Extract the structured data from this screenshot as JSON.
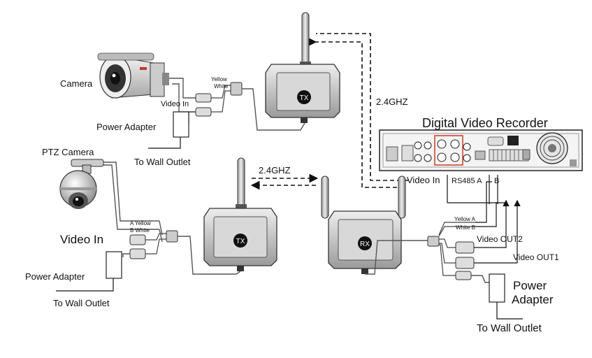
{
  "diagram": {
    "camera_label": "Camera",
    "ptz_camera_label": "PTZ Camera",
    "video_in_top": "Video In",
    "video_in_left": "Video In",
    "video_in_dvr": "Video In",
    "power_adapter_top": "Power Adapter",
    "power_adapter_left": "Power Adapter",
    "power_adapter_right_line1": "Power",
    "power_adapter_right_line2": "Adapter",
    "wall_outlet_top": "To Wall Outlet",
    "wall_outlet_left": "To Wall Outlet",
    "wall_outlet_right": "To Wall Outlet",
    "freq_top": "2.4GHZ",
    "freq_middle": "2.4GHZ",
    "dvr_title": "Digital Video Recorder",
    "rs485_label": "RS485 A",
    "rs485_b": "B",
    "video_out1": "Video OUT1",
    "video_out2": "Video OUT2",
    "tx_top_badge": "TX",
    "tx_bottom_badge": "TX",
    "rx_badge": "RX",
    "wire_yellow_top": "Yellow",
    "wire_white_top": "White",
    "wire_a_yellow": "A Yellow",
    "wire_b_white": "B White",
    "wire_yellow_a": "Yellow A",
    "wire_white_b": "White B"
  }
}
